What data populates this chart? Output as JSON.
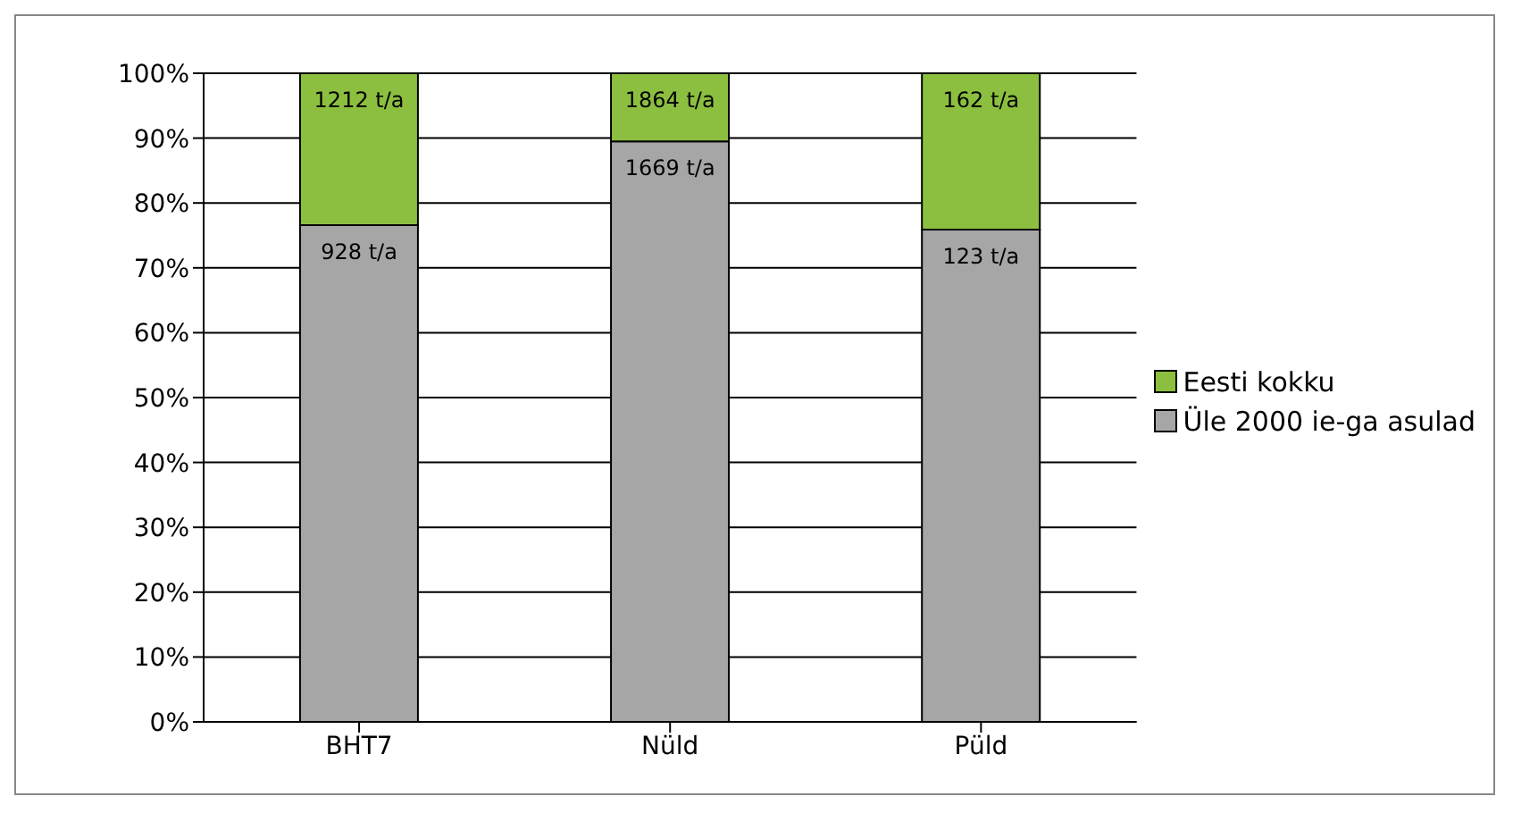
{
  "chart_data": {
    "type": "bar",
    "stacked": true,
    "categories": [
      "BHT7",
      "Nüld",
      "Püld"
    ],
    "series": [
      {
        "name": "Üle 2000 ie-ga asulad",
        "color": "#a6a6a6",
        "values": [
          76.6,
          89.5,
          75.9
        ]
      },
      {
        "name": "Eesti kokku",
        "color": "#8cbf3f",
        "values": [
          23.4,
          10.5,
          24.1
        ]
      }
    ],
    "annotations": [
      {
        "text": "928 t/a",
        "x": "BHT7",
        "y": 76.6
      },
      {
        "text": "1669 t/a",
        "x": "Nüld",
        "y": 89.5
      },
      {
        "text": "123 t/a",
        "x": "Püld",
        "y": 75.9
      },
      {
        "text": "1212 t/a",
        "x": "BHT7",
        "y": 100
      },
      {
        "text": "1864 t/a",
        "x": "Nüld",
        "y": 100
      },
      {
        "text": "162 t/a",
        "x": "Püld",
        "y": 100
      }
    ],
    "ylim": [
      0,
      100
    ],
    "yticks": [
      {
        "value": 0,
        "label": "0%"
      },
      {
        "value": 10,
        "label": "10%"
      },
      {
        "value": 20,
        "label": "20%"
      },
      {
        "value": 30,
        "label": "30%"
      },
      {
        "value": 40,
        "label": "40%"
      },
      {
        "value": 50,
        "label": "50%"
      },
      {
        "value": 60,
        "label": "60%"
      },
      {
        "value": 70,
        "label": "70%"
      },
      {
        "value": 80,
        "label": "80%"
      },
      {
        "value": 90,
        "label": "90%"
      },
      {
        "value": 100,
        "label": "100%"
      }
    ],
    "grid": "y",
    "legend": "right"
  }
}
